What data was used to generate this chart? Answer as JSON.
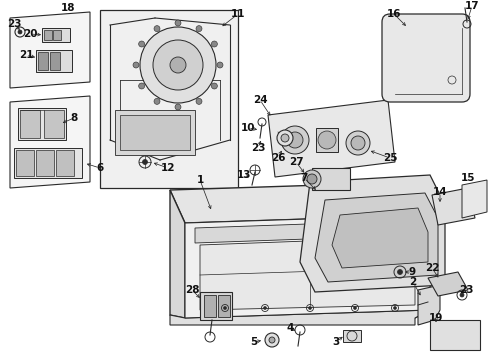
{
  "bg": "#ffffff",
  "fw": 4.89,
  "fh": 3.6,
  "dpi": 100,
  "lc": "#2a2a2a",
  "fc_light": "#e8e8e8",
  "fc_mid": "#d0d0d0",
  "fc_dark": "#b0b0b0"
}
